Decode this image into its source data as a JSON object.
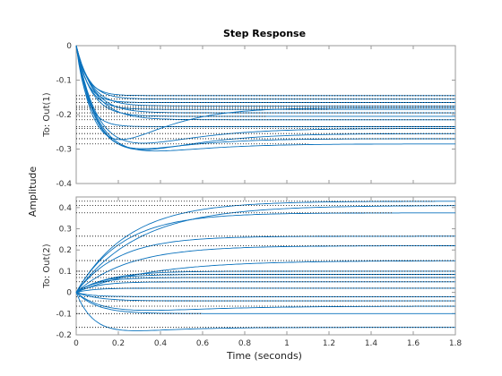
{
  "chart_data": {
    "type": "line",
    "title": "Step Response",
    "xlabel": "Time (seconds)",
    "ylabel": "Amplitude",
    "xlim": [
      0,
      1.8
    ],
    "xticks": [
      "0",
      "0.2",
      "0.4",
      "0.6",
      "0.8",
      "1",
      "1.2",
      "1.4",
      "1.6",
      "1.8"
    ],
    "grid": false,
    "panels": [
      {
        "output_label": "To: Out(1)",
        "ylim": [
          -0.4,
          0
        ],
        "yticks": [
          "0",
          "-0.1",
          "-0.2",
          "-0.3",
          "-0.4"
        ],
        "series": [
          {
            "final": -0.145,
            "tau": 0.05,
            "peak": 0,
            "settle": 1.8
          },
          {
            "final": -0.155,
            "tau": 0.06,
            "peak": 0,
            "settle": 1.8
          },
          {
            "final": -0.165,
            "tau": 0.05,
            "peak": 0,
            "settle": 1.8
          },
          {
            "final": -0.175,
            "tau": 0.07,
            "peak": 0,
            "settle": 1.8
          },
          {
            "final": -0.185,
            "tau": 0.06,
            "peak": 0,
            "settle": 1.2
          },
          {
            "final": -0.195,
            "tau": 0.08,
            "peak": 0,
            "settle": 1.8
          },
          {
            "final": -0.205,
            "tau": 0.07,
            "peak": 0,
            "settle": 0.9
          },
          {
            "final": -0.215,
            "tau": 0.09,
            "peak": 0,
            "settle": 1.8
          },
          {
            "final": -0.235,
            "tau": 0.05,
            "peak": 0,
            "settle": 1.8
          },
          {
            "final": -0.24,
            "tau": 0.1,
            "peak": -0.3,
            "settle": 1.8
          },
          {
            "final": -0.255,
            "tau": 0.1,
            "peak": -0.32,
            "settle": 1.8
          },
          {
            "final": -0.27,
            "tau": 0.09,
            "peak": -0.315,
            "settle": 1.8
          },
          {
            "final": -0.285,
            "tau": 0.1,
            "peak": -0.32,
            "settle": 1.1
          },
          {
            "final": -0.18,
            "tau": 0.08,
            "peak": -0.29,
            "settle": 1.8
          }
        ]
      },
      {
        "output_label": "To: Out(2)",
        "ylim": [
          -0.2,
          0.45
        ],
        "yticks": [
          "0.4",
          "0.3",
          "0.2",
          "0.1",
          "0",
          "-0.1",
          "-0.2"
        ],
        "series": [
          {
            "final": 0.43,
            "tau": 0.25,
            "peak": 0,
            "settle": 1.7
          },
          {
            "final": 0.41,
            "tau": 0.3,
            "peak": 0,
            "settle": 1.8
          },
          {
            "final": 0.375,
            "tau": 0.22,
            "peak": 0,
            "settle": 1.5
          },
          {
            "final": 0.265,
            "tau": 0.2,
            "peak": 0,
            "settle": 1.8
          },
          {
            "final": 0.22,
            "tau": 0.25,
            "peak": 0,
            "settle": 1.8
          },
          {
            "final": 0.15,
            "tau": 0.35,
            "peak": 0,
            "settle": 1.8
          },
          {
            "final": 0.1,
            "tau": 0.15,
            "peak": 0,
            "settle": 1.8
          },
          {
            "final": 0.085,
            "tau": 0.12,
            "peak": 0,
            "settle": 1.8
          },
          {
            "final": 0.07,
            "tau": 0.1,
            "peak": 0,
            "settle": 1.8
          },
          {
            "final": 0.05,
            "tau": 0.1,
            "peak": 0,
            "settle": 1.8
          },
          {
            "final": 0.02,
            "tau": 0.08,
            "peak": 0,
            "settle": 1.8
          },
          {
            "final": -0.02,
            "tau": 0.07,
            "peak": 0,
            "settle": 1.8
          },
          {
            "final": -0.04,
            "tau": 0.1,
            "peak": 0,
            "settle": 1.8
          },
          {
            "final": -0.065,
            "tau": 0.12,
            "peak": -0.09,
            "settle": 1.8
          },
          {
            "final": -0.1,
            "tau": 0.1,
            "peak": 0,
            "settle": 0.6
          },
          {
            "final": -0.165,
            "tau": 0.08,
            "peak": -0.19,
            "settle": 1.8
          }
        ]
      }
    ]
  }
}
